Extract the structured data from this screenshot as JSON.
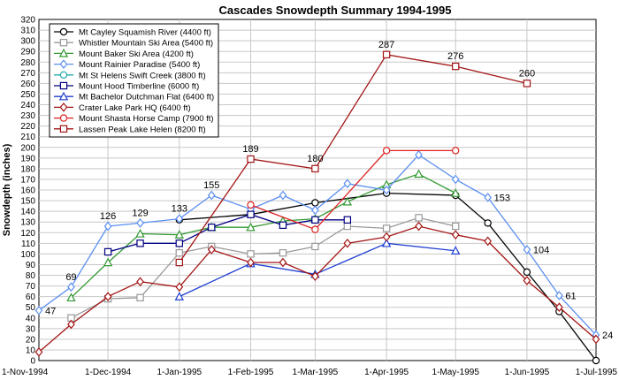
{
  "chart_data": {
    "type": "line",
    "title": "Cascades Snowdepth Summary 1994-1995",
    "xlabel": "",
    "ylabel": "Snowdepth (inches)",
    "ylim": [
      0,
      320
    ],
    "ytick_step": 10,
    "xlim": [
      "1994-11-01",
      "1995-07-01"
    ],
    "x_ticks": [
      {
        "date": "1994-11-01",
        "label": "1-Nov-1994"
      },
      {
        "date": "1994-12-01",
        "label": "1-Dec-1994"
      },
      {
        "date": "1995-01-01",
        "label": "1-Jan-1995"
      },
      {
        "date": "1995-02-01",
        "label": "1-Feb-1995"
      },
      {
        "date": "1995-03-01",
        "label": "1-Mar-1995"
      },
      {
        "date": "1995-04-01",
        "label": "1-Apr-1995"
      },
      {
        "date": "1995-05-01",
        "label": "1-May-1995"
      },
      {
        "date": "1995-06-01",
        "label": "1-Jun-1995"
      },
      {
        "date": "1995-07-01",
        "label": "1-Jul-1995"
      }
    ],
    "grid": true,
    "legend_position": "top-left",
    "series": [
      {
        "name": "Mt Cayley Squamish River (4400 ft)",
        "color": "#000000",
        "marker": "circle",
        "points": [
          [
            "1995-01-01",
            132
          ],
          [
            "1995-02-01",
            137
          ],
          [
            "1995-03-01",
            148
          ],
          [
            "1995-04-01",
            157
          ],
          [
            "1995-05-01",
            155
          ],
          [
            "1995-05-15",
            129
          ],
          [
            "1995-06-01",
            83
          ],
          [
            "1995-06-15",
            46
          ],
          [
            "1995-07-01",
            0
          ]
        ]
      },
      {
        "name": "Whistler Mountain Ski Area (5400 ft)",
        "color": "#999999",
        "marker": "square",
        "points": [
          [
            "1994-11-15",
            40
          ],
          [
            "1994-12-01",
            58
          ],
          [
            "1994-12-15",
            59
          ],
          [
            "1995-01-01",
            101
          ],
          [
            "1995-01-15",
            107
          ],
          [
            "1995-02-01",
            100
          ],
          [
            "1995-02-15",
            101
          ],
          [
            "1995-03-01",
            107
          ],
          [
            "1995-03-15",
            126
          ],
          [
            "1995-04-01",
            124
          ],
          [
            "1995-04-15",
            134
          ],
          [
            "1995-05-01",
            126
          ]
        ]
      },
      {
        "name": "Mount Baker Ski Area (4200 ft)",
        "color": "#339933",
        "marker": "triangle",
        "points": [
          [
            "1994-11-15",
            59
          ],
          [
            "1994-12-01",
            92
          ],
          [
            "1994-12-15",
            119
          ],
          [
            "1995-01-01",
            118
          ],
          [
            "1995-01-15",
            125
          ],
          [
            "1995-02-01",
            125
          ],
          [
            "1995-02-15",
            131
          ],
          [
            "1995-03-01",
            133
          ],
          [
            "1995-03-15",
            149
          ],
          [
            "1995-04-01",
            165
          ],
          [
            "1995-04-15",
            175
          ],
          [
            "1995-05-01",
            157
          ]
        ]
      },
      {
        "name": "Mount Rainier Paradise (5400 ft)",
        "color": "#5b8ff0",
        "marker": "diamond",
        "points": [
          [
            "1994-11-01",
            47
          ],
          [
            "1994-11-15",
            69
          ],
          [
            "1994-12-01",
            126
          ],
          [
            "1994-12-15",
            129
          ],
          [
            "1995-01-01",
            133
          ],
          [
            "1995-01-15",
            155
          ],
          [
            "1995-02-01",
            142
          ],
          [
            "1995-02-15",
            155
          ],
          [
            "1995-03-01",
            141
          ],
          [
            "1995-03-15",
            166
          ],
          [
            "1995-04-01",
            160
          ],
          [
            "1995-04-15",
            193
          ],
          [
            "1995-05-01",
            170
          ],
          [
            "1995-05-15",
            153
          ],
          [
            "1995-06-01",
            104
          ],
          [
            "1995-06-15",
            61
          ],
          [
            "1995-07-01",
            24
          ]
        ]
      },
      {
        "name": "Mt St Helens Swift Creek (3800 ft)",
        "color": "#22aaaa",
        "marker": "circle",
        "points": []
      },
      {
        "name": "Mount Hood Timberline (6000 ft)",
        "color": "#000080",
        "marker": "square",
        "points": [
          [
            "1994-12-01",
            102
          ],
          [
            "1994-12-15",
            110
          ],
          [
            "1995-01-01",
            110
          ],
          [
            "1995-01-15",
            125
          ],
          [
            "1995-02-01",
            137
          ],
          [
            "1995-02-15",
            127
          ],
          [
            "1995-03-01",
            132
          ],
          [
            "1995-03-15",
            132
          ]
        ]
      },
      {
        "name": "Mt Bachelor Dutchman Flat (6400 ft)",
        "color": "#1f3fd0",
        "marker": "triangle",
        "points": [
          [
            "1995-01-01",
            60
          ],
          [
            "1995-02-01",
            91
          ],
          [
            "1995-03-01",
            81
          ],
          [
            "1995-04-01",
            110
          ],
          [
            "1995-05-01",
            103
          ]
        ]
      },
      {
        "name": "Crater Lake Park HQ (6400 ft)",
        "color": "#a31515",
        "marker": "diamond",
        "points": [
          [
            "1994-11-01",
            8
          ],
          [
            "1994-11-15",
            34
          ],
          [
            "1994-12-01",
            60
          ],
          [
            "1994-12-15",
            74
          ],
          [
            "1995-01-01",
            69
          ],
          [
            "1995-01-15",
            104
          ],
          [
            "1995-02-01",
            92
          ],
          [
            "1995-02-15",
            92
          ],
          [
            "1995-03-01",
            79
          ],
          [
            "1995-03-15",
            110
          ],
          [
            "1995-04-01",
            116
          ],
          [
            "1995-04-15",
            126
          ],
          [
            "1995-05-01",
            118
          ],
          [
            "1995-05-15",
            112
          ],
          [
            "1995-06-01",
            75
          ],
          [
            "1995-06-15",
            50
          ],
          [
            "1995-07-01",
            20
          ]
        ]
      },
      {
        "name": "Mount Shasta Horse Camp (7900 ft)",
        "color": "#dd2222",
        "marker": "circle",
        "points": [
          [
            "1995-02-01",
            146
          ],
          [
            "1995-03-01",
            123
          ],
          [
            "1995-04-01",
            197
          ],
          [
            "1995-05-01",
            197
          ]
        ]
      },
      {
        "name": "Lassen Peak Lake Helen (8200 ft)",
        "color": "#a31515",
        "marker": "square",
        "points": [
          [
            "1995-01-01",
            92
          ],
          [
            "1995-02-01",
            189
          ],
          [
            "1995-03-01",
            180
          ],
          [
            "1995-04-01",
            287
          ],
          [
            "1995-05-01",
            276
          ],
          [
            "1995-06-01",
            260
          ]
        ]
      }
    ],
    "annotations": [
      {
        "text": "47",
        "date": "1994-11-01",
        "value": 47,
        "pos": "right"
      },
      {
        "text": "69",
        "date": "1994-11-15",
        "value": 69,
        "pos": "above"
      },
      {
        "text": "126",
        "date": "1994-12-01",
        "value": 126,
        "pos": "above"
      },
      {
        "text": "129",
        "date": "1994-12-15",
        "value": 129,
        "pos": "above"
      },
      {
        "text": "133",
        "date": "1995-01-01",
        "value": 133,
        "pos": "above"
      },
      {
        "text": "155",
        "date": "1995-01-15",
        "value": 155,
        "pos": "above"
      },
      {
        "text": "189",
        "date": "1995-02-01",
        "value": 189,
        "pos": "above"
      },
      {
        "text": "180",
        "date": "1995-03-01",
        "value": 180,
        "pos": "above"
      },
      {
        "text": "287",
        "date": "1995-04-01",
        "value": 287,
        "pos": "above"
      },
      {
        "text": "276",
        "date": "1995-05-01",
        "value": 276,
        "pos": "above"
      },
      {
        "text": "260",
        "date": "1995-06-01",
        "value": 260,
        "pos": "above"
      },
      {
        "text": "153",
        "date": "1995-05-15",
        "value": 153,
        "pos": "right"
      },
      {
        "text": "104",
        "date": "1995-06-01",
        "value": 104,
        "pos": "right"
      },
      {
        "text": "61",
        "date": "1995-06-15",
        "value": 61,
        "pos": "right"
      },
      {
        "text": "24",
        "date": "1995-07-01",
        "value": 24,
        "pos": "right"
      }
    ]
  }
}
